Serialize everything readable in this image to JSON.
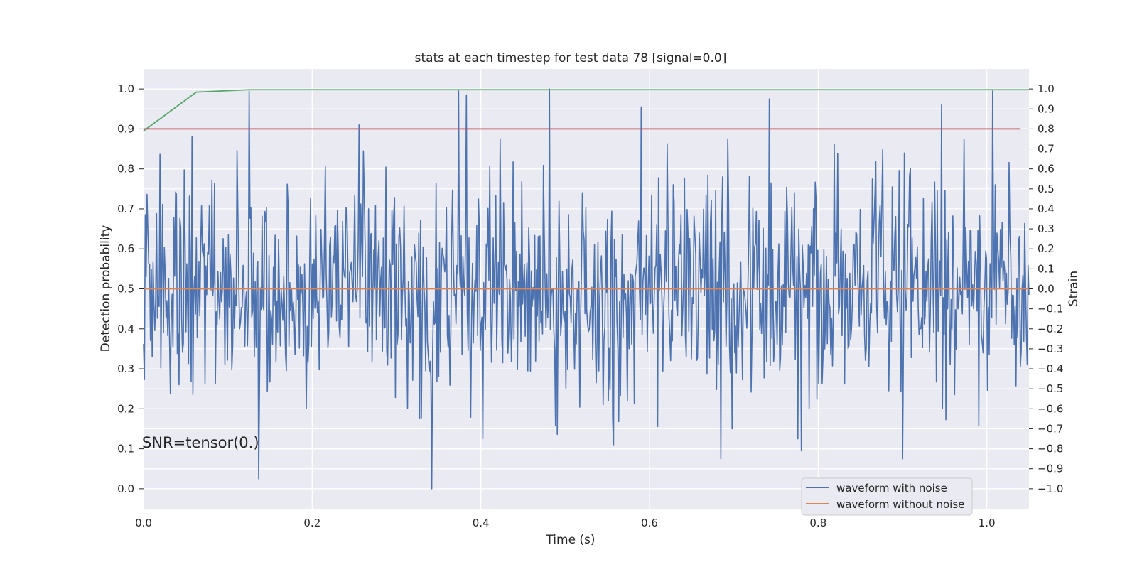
{
  "chart_data": {
    "type": "line",
    "title": "stats at each timestep for test data 78 [signal=0.0]",
    "xlabel": "Time (s)",
    "ylabel": "Detection probability",
    "y2label": "Strain",
    "xlim": [
      0.0,
      1.05
    ],
    "ylim": [
      -0.05,
      1.05
    ],
    "y2lim": [
      -1.1,
      1.1
    ],
    "xticks": [
      "0.0",
      "0.2",
      "0.4",
      "0.6",
      "0.8",
      "1.0"
    ],
    "yticks": [
      "0.0",
      "0.1",
      "0.2",
      "0.3",
      "0.4",
      "0.5",
      "0.6",
      "0.7",
      "0.8",
      "0.9",
      "1.0"
    ],
    "y2ticks": [
      "−1.0",
      "−0.9",
      "−0.8",
      "−0.7",
      "−0.6",
      "−0.5",
      "−0.4",
      "−0.3",
      "−0.2",
      "−0.1",
      "0.0",
      "0.1",
      "0.2",
      "0.3",
      "0.4",
      "0.5",
      "0.6",
      "0.7",
      "0.8",
      "0.9",
      "1.0"
    ],
    "grid": true,
    "legend": "bottom-right",
    "annotation": "SNR=tensor(0.)",
    "colors": {
      "background": "#eaeaf2",
      "grid": "#ffffff",
      "waveform_with_noise": "#4c72b0",
      "waveform_without_noise": "#dd8452",
      "probability": "#55a868",
      "threshold": "#c44e52"
    },
    "series": [
      {
        "name": "waveform with noise",
        "axis": "right",
        "description_points": {
          "x_range": [
            0.0,
            1.05
          ],
          "samples": 1024,
          "seed": 78,
          "spikes": [
            {
              "x": 0.057,
              "y": 0.76
            },
            {
              "x": 0.125,
              "y": 0.99
            },
            {
              "x": 0.137,
              "y": -0.95
            },
            {
              "x": 0.256,
              "y": 0.82
            },
            {
              "x": 0.342,
              "y": -1.0
            },
            {
              "x": 0.374,
              "y": 0.99
            },
            {
              "x": 0.383,
              "y": 0.97
            },
            {
              "x": 0.481,
              "y": 1.0
            },
            {
              "x": 0.557,
              "y": -0.78
            },
            {
              "x": 0.59,
              "y": 0.91
            },
            {
              "x": 0.685,
              "y": -0.85
            },
            {
              "x": 0.742,
              "y": 0.95
            },
            {
              "x": 0.78,
              "y": -0.81
            },
            {
              "x": 0.9,
              "y": -0.85
            },
            {
              "x": 0.946,
              "y": 0.92
            },
            {
              "x": 1.007,
              "y": 0.99
            }
          ]
        }
      },
      {
        "name": "waveform without noise",
        "axis": "right",
        "x": [
          0.0,
          1.05
        ],
        "y": [
          0.0,
          0.0
        ]
      },
      {
        "axis": "left",
        "x": [
          0.0,
          0.0625,
          0.125,
          0.1875,
          0.25,
          0.3125,
          0.375,
          0.4375,
          0.5,
          0.5625,
          0.625,
          0.6875,
          0.75,
          0.8125,
          0.875,
          0.9375,
          1.0,
          1.05
        ],
        "y": [
          0.895,
          0.992,
          0.998,
          0.998,
          0.998,
          0.998,
          0.998,
          0.998,
          0.998,
          0.998,
          0.998,
          0.998,
          0.998,
          0.998,
          0.998,
          0.998,
          0.998,
          0.998
        ]
      },
      {
        "axis": "left",
        "x": [
          0.0,
          1.04
        ],
        "y": [
          0.9,
          0.9
        ]
      }
    ]
  }
}
